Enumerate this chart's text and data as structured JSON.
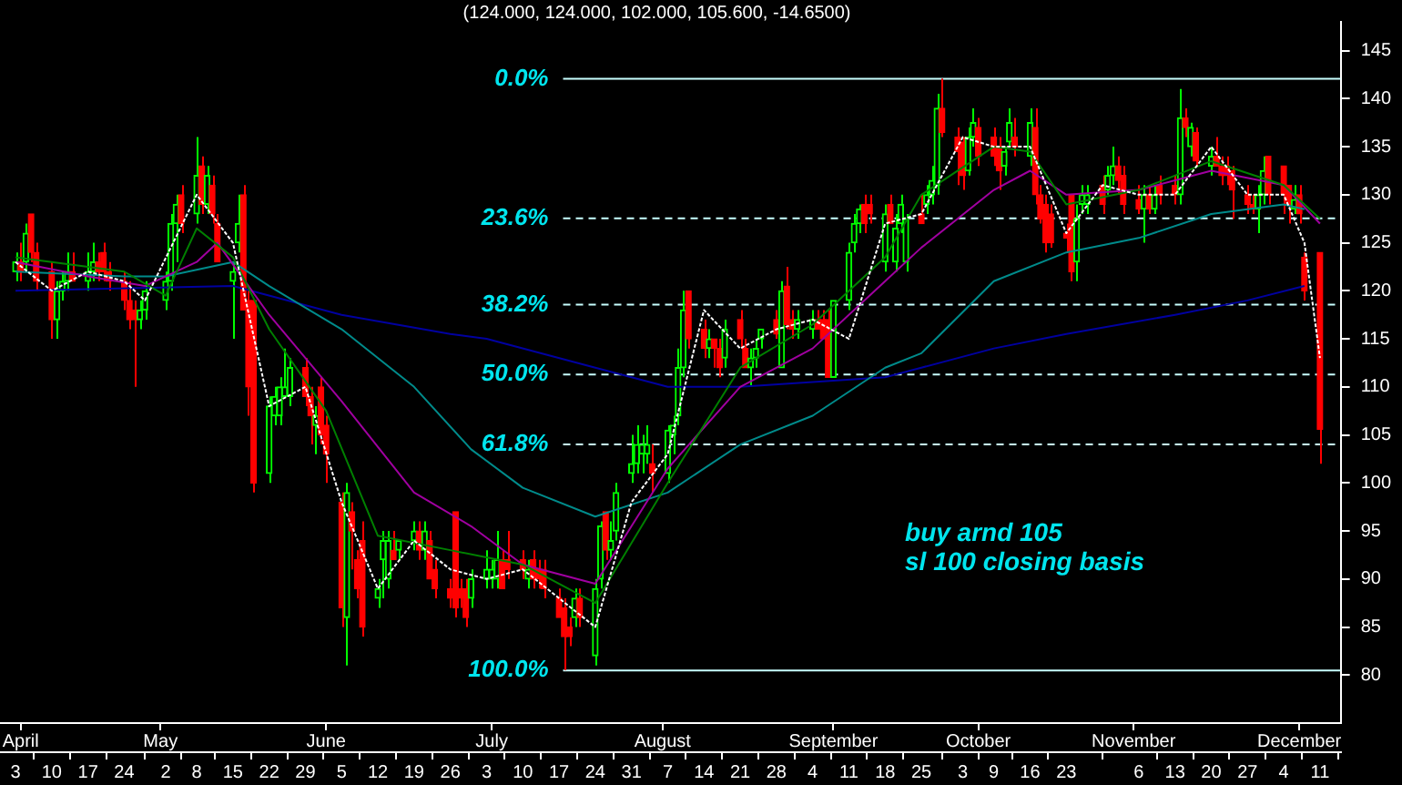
{
  "chart_data": {
    "type": "candlestick",
    "title": "(124.000, 124.000, 102.000, 105.600, -14.6500)",
    "x": [
      "--04-03",
      "--04-04",
      "--04-05",
      "--04-06",
      "--04-07",
      "--04-10",
      "--04-11",
      "--04-12",
      "--04-13",
      "--04-14",
      "--04-17",
      "--04-18",
      "--04-19",
      "--04-20",
      "--04-21",
      "--04-24",
      "--04-25",
      "--04-26",
      "--04-27",
      "--04-28",
      "--05-02",
      "--05-03",
      "--05-04",
      "--05-05",
      "--05-08",
      "--05-09",
      "--05-10",
      "--05-11",
      "--05-12",
      "--05-15",
      "--05-16",
      "--05-17",
      "--05-18",
      "--05-19",
      "--05-22",
      "--05-23",
      "--05-24",
      "--05-25",
      "--05-26",
      "--05-29",
      "--05-30",
      "--05-31",
      "--06-01",
      "--06-02",
      "--06-05",
      "--06-06",
      "--06-07",
      "--06-08",
      "--06-09",
      "--06-12",
      "--06-13",
      "--06-14",
      "--06-15",
      "--06-16",
      "--06-19",
      "--06-20",
      "--06-21",
      "--06-22",
      "--06-23",
      "--06-26",
      "--06-27",
      "--06-28",
      "--06-29",
      "--06-30",
      "--07-03",
      "--07-04",
      "--07-05",
      "--07-06",
      "--07-07",
      "--07-10",
      "--07-11",
      "--07-12",
      "--07-13",
      "--07-14",
      "--07-17",
      "--07-18",
      "--07-19",
      "--07-20",
      "--07-21",
      "--07-24",
      "--07-25",
      "--07-26",
      "--07-27",
      "--07-28",
      "--07-31",
      "--08-01",
      "--08-02",
      "--08-03",
      "--08-04",
      "--08-07",
      "--08-08",
      "--08-09",
      "--08-10",
      "--08-11",
      "--08-14",
      "--08-15",
      "--08-16",
      "--08-17",
      "--08-18",
      "--08-21",
      "--08-22",
      "--08-23",
      "--08-24",
      "--08-25",
      "--08-28",
      "--08-29",
      "--08-30",
      "--08-31",
      "--09-01",
      "--09-04",
      "--09-05",
      "--09-06",
      "--09-07",
      "--09-08",
      "--09-11",
      "--09-12",
      "--09-13",
      "--09-14",
      "--09-15",
      "--09-18",
      "--09-19",
      "--09-20",
      "--09-21",
      "--09-22",
      "--09-25",
      "--09-26",
      "--09-27",
      "--09-28",
      "--09-29",
      "--10-02",
      "--10-03",
      "--10-04",
      "--10-05",
      "--10-06",
      "--10-09",
      "--10-10",
      "--10-11",
      "--10-12",
      "--10-13",
      "--10-16",
      "--10-17",
      "--10-18",
      "--10-19",
      "--10-20",
      "--10-23",
      "--10-24",
      "--10-25",
      "--10-26",
      "--10-27",
      "--10-30",
      "--10-31",
      "--11-01",
      "--11-02",
      "--11-03",
      "--11-06",
      "--11-07",
      "--11-08",
      "--11-09",
      "--11-10",
      "--11-13",
      "--11-14",
      "--11-15",
      "--11-16",
      "--11-17",
      "--11-20",
      "--11-21",
      "--11-22",
      "--11-23",
      "--11-24",
      "--11-27",
      "--11-28",
      "--11-29",
      "--11-30",
      "--12-01",
      "--12-04",
      "--12-05",
      "--12-06",
      "--12-07",
      "--12-08",
      "--12-11"
    ],
    "ohlc": [
      [
        122,
        124,
        121,
        123
      ],
      [
        123,
        125,
        121,
        122
      ],
      [
        123,
        127,
        122,
        126
      ],
      [
        128,
        128,
        123,
        124
      ],
      [
        124,
        125,
        120,
        121
      ],
      [
        122,
        123,
        115,
        117
      ],
      [
        117,
        121,
        115,
        120
      ],
      [
        120,
        122,
        119,
        121
      ],
      [
        121,
        124,
        120,
        122
      ],
      [
        122,
        124,
        121,
        121
      ],
      [
        121,
        124,
        120,
        122
      ],
      [
        122,
        125,
        121,
        123
      ],
      [
        123,
        124,
        121,
        122
      ],
      [
        124,
        125,
        121,
        122
      ],
      [
        122,
        123,
        120,
        121
      ],
      [
        121,
        122,
        118,
        119
      ],
      [
        119,
        121,
        116,
        117
      ],
      [
        118,
        119,
        110,
        117
      ],
      [
        117,
        119,
        116,
        118
      ],
      [
        118,
        121,
        117,
        120
      ],
      [
        119,
        122,
        118,
        121
      ],
      [
        121,
        128,
        120,
        127
      ],
      [
        127,
        130,
        123,
        129
      ],
      [
        130,
        131,
        126,
        127
      ],
      [
        128,
        136,
        127,
        132
      ],
      [
        133,
        134,
        128,
        129
      ],
      [
        129,
        133,
        128,
        132
      ],
      [
        131,
        132,
        127,
        128
      ],
      [
        127,
        128,
        123,
        123
      ],
      [
        121,
        123,
        115,
        122
      ],
      [
        125,
        130,
        124,
        127
      ],
      [
        130,
        131,
        118,
        118
      ],
      [
        119,
        120,
        107,
        110
      ],
      [
        119,
        119,
        99,
        100
      ],
      [
        101,
        109,
        100,
        108
      ],
      [
        107,
        110,
        106,
        109
      ],
      [
        107,
        111,
        106,
        110
      ],
      [
        109,
        114,
        109,
        110
      ],
      [
        109,
        113,
        108,
        112
      ],
      [
        112,
        113,
        108,
        109
      ],
      [
        109,
        110,
        104,
        107
      ],
      [
        106,
        108,
        103,
        107
      ],
      [
        110,
        111,
        104,
        105
      ],
      [
        106,
        107,
        100,
        103
      ],
      [
        98,
        99,
        85,
        87
      ],
      [
        86,
        100,
        81,
        99
      ],
      [
        97,
        98,
        91,
        95
      ],
      [
        92,
        93,
        88,
        89
      ],
      [
        94,
        96,
        84,
        85
      ],
      [
        88,
        90,
        87,
        89
      ],
      [
        92,
        95,
        88,
        94
      ],
      [
        90,
        95,
        89,
        94
      ],
      [
        93,
        95,
        92,
        92
      ],
      [
        93,
        94,
        92,
        94
      ],
      [
        94,
        96,
        93,
        95
      ],
      [
        95,
        96,
        92,
        93
      ],
      [
        93,
        96,
        92,
        95
      ],
      [
        94,
        95,
        90,
        90
      ],
      [
        91,
        92,
        88,
        89
      ],
      [
        89,
        90,
        87,
        88
      ],
      [
        97,
        97,
        86,
        87
      ],
      [
        89,
        90,
        87,
        88
      ],
      [
        89,
        90,
        85,
        86
      ],
      [
        88,
        91,
        87,
        90
      ],
      [
        90,
        93,
        89,
        91
      ],
      [
        90,
        92,
        89,
        91
      ],
      [
        90,
        95,
        89,
        92
      ],
      [
        92,
        93,
        89,
        89
      ],
      [
        92,
        95,
        90,
        91
      ],
      [
        92,
        93,
        90,
        91
      ],
      [
        90,
        92,
        89,
        91
      ],
      [
        92,
        93,
        89,
        90
      ],
      [
        91,
        92,
        89,
        90
      ],
      [
        91,
        92,
        88,
        89
      ],
      [
        88,
        89,
        86,
        86
      ],
      [
        87,
        88,
        80.5,
        84
      ],
      [
        85,
        86,
        83,
        84
      ],
      [
        86,
        89,
        85,
        88
      ],
      [
        88,
        89,
        85,
        86
      ],
      [
        82,
        90,
        81,
        89
      ],
      [
        90,
        96,
        89,
        95.5
      ],
      [
        97,
        97,
        92,
        93
      ],
      [
        93,
        96,
        92,
        94
      ],
      [
        95,
        100,
        94,
        99
      ],
      [
        101,
        105,
        100,
        102
      ],
      [
        102,
        106,
        101,
        104
      ],
      [
        103,
        105,
        101,
        104
      ],
      [
        103,
        106,
        102,
        104
      ],
      [
        102,
        104,
        99,
        101
      ],
      [
        101,
        106,
        100,
        105.5
      ],
      [
        105,
        107,
        103,
        106
      ],
      [
        107,
        114,
        106,
        112
      ],
      [
        112,
        120,
        111,
        118
      ],
      [
        120,
        120,
        114,
        115
      ],
      [
        116,
        117,
        113,
        114
      ],
      [
        114,
        116,
        113,
        115
      ],
      [
        115,
        115,
        112,
        114
      ],
      [
        114,
        115,
        111,
        112
      ],
      [
        113,
        117,
        112,
        116
      ],
      [
        117,
        118,
        114,
        115
      ],
      [
        114,
        115,
        112,
        112
      ],
      [
        112,
        114,
        110,
        113
      ],
      [
        113,
        115,
        112,
        114
      ],
      [
        115,
        116,
        114,
        116
      ],
      [
        117,
        118,
        115,
        115.5
      ],
      [
        112,
        121,
        112,
        120
      ],
      [
        120.5,
        122.5,
        116,
        116.5
      ],
      [
        117,
        118,
        115,
        116
      ],
      [
        116,
        118,
        115,
        117
      ],
      [
        116,
        118,
        115,
        117
      ],
      [
        117,
        118,
        116,
        116
      ],
      [
        117,
        118,
        115,
        115
      ],
      [
        117,
        118,
        111,
        111
      ],
      [
        111,
        119,
        111,
        119
      ],
      [
        119,
        125,
        118,
        124
      ],
      [
        125,
        128,
        124,
        127
      ],
      [
        127,
        129,
        126,
        128.5
      ],
      [
        129,
        130,
        126,
        127
      ],
      [
        129,
        130,
        127,
        128
      ],
      [
        123,
        129,
        122,
        128
      ],
      [
        129,
        130,
        127,
        127
      ],
      [
        123,
        128,
        122,
        126.5
      ],
      [
        127,
        130,
        126,
        129
      ],
      [
        123,
        128,
        122,
        127.5
      ],
      [
        128,
        130,
        127,
        127
      ],
      [
        129,
        131,
        128,
        130
      ],
      [
        130,
        133,
        129,
        131.5
      ],
      [
        131,
        140.5,
        130,
        139
      ],
      [
        139,
        142.1,
        136,
        136.5
      ],
      [
        136,
        137,
        131,
        134.5
      ],
      [
        135.5,
        136,
        130.5,
        132
      ],
      [
        132.5,
        137,
        132,
        136
      ],
      [
        136,
        139,
        135,
        137.5
      ],
      [
        137,
        138,
        133,
        134
      ],
      [
        136,
        137,
        133,
        134
      ],
      [
        135,
        136,
        130.5,
        132.5
      ],
      [
        133,
        135,
        132,
        134.5
      ],
      [
        135.5,
        139,
        135,
        137.5
      ],
      [
        136,
        138,
        134,
        135
      ],
      [
        134,
        139,
        133,
        137.5
      ],
      [
        137,
        139,
        129,
        130
      ],
      [
        130,
        131,
        127,
        127.5
      ],
      [
        129,
        130,
        124,
        125
      ],
      [
        128,
        129,
        124.5,
        125
      ],
      [
        126,
        127,
        124,
        125.5
      ],
      [
        130,
        130,
        121,
        122
      ],
      [
        123,
        129,
        121,
        127.5
      ],
      [
        129,
        131,
        128,
        130
      ],
      [
        129,
        131,
        128,
        130
      ],
      [
        131,
        132,
        128,
        129
      ],
      [
        130.5,
        133,
        130,
        132
      ],
      [
        132,
        135,
        131,
        133
      ],
      [
        133,
        134,
        130,
        131.5
      ],
      [
        132,
        133,
        128,
        129
      ],
      [
        129.5,
        131,
        128,
        128.5
      ],
      [
        128.5,
        131,
        125,
        130
      ],
      [
        130,
        131,
        128,
        128.5
      ],
      [
        128.5,
        131,
        128,
        130
      ],
      [
        131,
        132,
        129,
        130
      ],
      [
        131,
        132,
        129,
        130
      ],
      [
        130,
        141,
        129,
        138
      ],
      [
        138,
        139,
        136,
        137
      ],
      [
        135,
        137.5,
        134,
        137
      ],
      [
        136.5,
        137,
        133,
        133.5
      ],
      [
        133,
        135,
        132,
        134
      ],
      [
        134,
        136,
        133,
        133
      ],
      [
        133,
        134,
        131,
        132
      ],
      [
        133,
        134,
        131,
        132
      ],
      [
        132.5,
        133,
        127.5,
        130.5
      ],
      [
        130,
        131,
        128,
        129
      ],
      [
        129,
        130,
        128,
        128.5
      ],
      [
        128.5,
        131,
        126,
        130
      ],
      [
        130,
        134,
        129,
        132.5
      ],
      [
        134,
        134,
        129,
        130
      ],
      [
        133,
        133,
        128,
        130
      ],
      [
        131,
        131,
        127,
        129
      ],
      [
        128.5,
        131,
        128,
        129.5
      ],
      [
        130,
        131,
        127,
        128
      ],
      [
        123.5,
        124,
        119,
        120
      ],
      [
        124,
        124,
        102,
        105.6
      ]
    ],
    "colors": [
      "#00ff00",
      "#ff0000",
      "#00ff00",
      "#ff0000",
      "#ff0000",
      "#ff0000",
      "#00ff00",
      "#00ff00",
      "#00ff00",
      "#ff0000",
      "#00ff00",
      "#00ff00",
      "#ff0000",
      "#ff0000",
      "#ff0000",
      "#ff0000",
      "#ff0000",
      "#ff0000",
      "#00ff00",
      "#00ff00",
      "#00ff00",
      "#00ff00",
      "#00ff00",
      "#ff0000",
      "#00ff00",
      "#ff0000",
      "#00ff00",
      "#ff0000",
      "#ff0000",
      "#00ff00",
      "#00ff00",
      "#ff0000",
      "#ff0000",
      "#ff0000",
      "#00ff00",
      "#00ff00",
      "#00ff00",
      "#00ff00",
      "#00ff00",
      "#ff0000",
      "#ff0000",
      "#00ff00",
      "#ff0000",
      "#ff0000",
      "#ff0000",
      "#00ff00",
      "#ff0000",
      "#ff0000",
      "#ff0000",
      "#00ff00",
      "#00ff00",
      "#00ff00",
      "#ff0000",
      "#00ff00",
      "#00ff00",
      "#ff0000",
      "#00ff00",
      "#ff0000",
      "#ff0000",
      "#ff0000",
      "#ff0000",
      "#ff0000",
      "#ff0000",
      "#00ff00",
      "#00ff00",
      "#00ff00",
      "#00ff00",
      "#ff0000",
      "#ff0000",
      "#ff0000",
      "#00ff00",
      "#ff0000",
      "#ff0000",
      "#ff0000",
      "#ff0000",
      "#ff0000",
      "#ff0000",
      "#00ff00",
      "#ff0000",
      "#00ff00",
      "#00ff00",
      "#ff0000",
      "#00ff00",
      "#00ff00",
      "#00ff00",
      "#00ff00",
      "#00ff00",
      "#00ff00",
      "#ff0000",
      "#00ff00",
      "#00ff00",
      "#00ff00",
      "#00ff00",
      "#ff0000",
      "#ff0000",
      "#00ff00",
      "#ff0000",
      "#ff0000",
      "#00ff00",
      "#ff0000",
      "#ff0000",
      "#00ff00",
      "#00ff00",
      "#00ff00",
      "#ff0000",
      "#00ff00",
      "#ff0000",
      "#ff0000",
      "#00ff00",
      "#00ff00",
      "#ff0000",
      "#ff0000",
      "#ff0000",
      "#00ff00",
      "#00ff00",
      "#00ff00",
      "#00ff00",
      "#ff0000",
      "#ff0000",
      "#00ff00",
      "#ff0000",
      "#00ff00",
      "#00ff00",
      "#00ff00",
      "#ff0000",
      "#00ff00",
      "#00ff00",
      "#00ff00",
      "#ff0000",
      "#ff0000",
      "#ff0000",
      "#00ff00",
      "#00ff00",
      "#ff0000",
      "#ff0000",
      "#ff0000",
      "#00ff00",
      "#00ff00",
      "#ff0000",
      "#00ff00",
      "#ff0000",
      "#ff0000",
      "#ff0000",
      "#ff0000",
      "#ff0000",
      "#ff0000",
      "#00ff00",
      "#00ff00",
      "#00ff00",
      "#ff0000",
      "#00ff00",
      "#00ff00",
      "#ff0000",
      "#ff0000",
      "#ff0000",
      "#00ff00",
      "#ff0000",
      "#00ff00",
      "#ff0000",
      "#ff0000",
      "#00ff00",
      "#ff0000",
      "#00ff00",
      "#ff0000",
      "#00ff00",
      "#ff0000",
      "#ff0000",
      "#ff0000",
      "#ff0000",
      "#ff0000",
      "#ff0000",
      "#00ff00",
      "#00ff00",
      "#ff0000",
      "#ff0000",
      "#ff0000",
      "#00ff00",
      "#ff0000",
      "#ff0000",
      "#ff0000"
    ],
    "series": [
      {
        "type": "line",
        "color": "#ffffff",
        "line_style": "dotted",
        "x": [
          "--04-03",
          "--04-10",
          "--04-17",
          "--04-24",
          "--04-28",
          "--05-08",
          "--05-15",
          "--05-22",
          "--05-29",
          "--06-05",
          "--06-12",
          "--06-19",
          "--06-26",
          "--07-03",
          "--07-10",
          "--07-17",
          "--07-24",
          "--07-31",
          "--08-07",
          "--08-14",
          "--08-21",
          "--08-28",
          "--09-04",
          "--09-11",
          "--09-18",
          "--09-25",
          "--10-03",
          "--10-09",
          "--10-16",
          "--10-23",
          "--10-30",
          "--11-06",
          "--11-13",
          "--11-20",
          "--11-27",
          "--12-04",
          "--12-08",
          "--12-11"
        ],
        "values": [
          123,
          120,
          122,
          121,
          119,
          130,
          125,
          108,
          110,
          98,
          89,
          94,
          91,
          90,
          91,
          88,
          85,
          98,
          103,
          118,
          114,
          116,
          117,
          115,
          127,
          128,
          136,
          135,
          135,
          126,
          131,
          130,
          130,
          135,
          130,
          130,
          125,
          113
        ]
      },
      {
        "type": "line",
        "color": "#008000",
        "line_style": "solid",
        "x": [
          "--04-03",
          "--04-24",
          "--05-02",
          "--05-08",
          "--05-15",
          "--05-22",
          "--06-02",
          "--06-12",
          "--06-26",
          "--07-10",
          "--07-24",
          "--08-07",
          "--08-21",
          "--09-04",
          "--09-18",
          "--09-25",
          "--10-09",
          "--10-16",
          "--10-23",
          "--11-06",
          "--11-20",
          "--12-04",
          "--12-11"
        ],
        "values": [
          123.5,
          122,
          119.5,
          126.5,
          123.5,
          116,
          107.5,
          94.5,
          93,
          91.5,
          87.5,
          100,
          112,
          116.5,
          123.5,
          130,
          135,
          134.5,
          129,
          130.5,
          133.5,
          131,
          127.5
        ]
      },
      {
        "type": "line",
        "color": "#a000a0",
        "line_style": "solid",
        "x": [
          "--04-03",
          "--04-17",
          "--04-28",
          "--05-08",
          "--05-12",
          "--05-22",
          "--06-05",
          "--06-19",
          "--06-30",
          "--07-10",
          "--07-24",
          "--08-07",
          "--08-21",
          "--09-04",
          "--09-18",
          "--09-25",
          "--10-09",
          "--10-16",
          "--10-23",
          "--11-06",
          "--11-20",
          "--12-04",
          "--12-11"
        ],
        "values": [
          123,
          121.5,
          120.5,
          123,
          125,
          117.5,
          108.5,
          99,
          95.5,
          91.5,
          89.5,
          101.5,
          110,
          114,
          121,
          124.5,
          130.5,
          132.5,
          130,
          130.5,
          132.5,
          131,
          127
        ]
      },
      {
        "type": "line",
        "color": "#008b8b",
        "line_style": "solid",
        "x": [
          "--04-03",
          "--04-24",
          "--05-02",
          "--05-15",
          "--05-22",
          "--06-05",
          "--06-19",
          "--06-30",
          "--07-10",
          "--07-24",
          "--08-07",
          "--08-21",
          "--09-04",
          "--09-18",
          "--09-25",
          "--10-09",
          "--10-23",
          "--11-06",
          "--11-20",
          "--12-04",
          "--12-08"
        ],
        "values": [
          122,
          121.5,
          121.5,
          123,
          120.5,
          116,
          110,
          103.5,
          99.5,
          96.5,
          99,
          104,
          107,
          112,
          113.5,
          121,
          124,
          125.5,
          128,
          129,
          128.5
        ]
      },
      {
        "type": "line",
        "color": "#0000a0",
        "line_style": "solid",
        "x": [
          "--04-03",
          "--05-15",
          "--06-05",
          "--06-26",
          "--07-03",
          "--07-24",
          "--08-07",
          "--08-21",
          "--09-04",
          "--09-18",
          "--09-25",
          "--10-09",
          "--10-23",
          "--11-13",
          "--11-27",
          "--12-08"
        ],
        "values": [
          120,
          120.5,
          117.5,
          115.5,
          115,
          112,
          110,
          110,
          110.5,
          111,
          112,
          114,
          115.5,
          117.5,
          119,
          120.5
        ]
      }
    ],
    "xlim": [
      "--03-31",
      "--12-15"
    ],
    "xticks": [
      {
        "value": "--04-03",
        "label": "3"
      },
      {
        "value": "--04-10",
        "label": "10"
      },
      {
        "value": "--04-17",
        "label": "17"
      },
      {
        "value": "--04-24",
        "label": "24"
      },
      {
        "value": "--05-02",
        "label": "2"
      },
      {
        "value": "--05-08",
        "label": "8"
      },
      {
        "value": "--05-15",
        "label": "15"
      },
      {
        "value": "--05-22",
        "label": "22"
      },
      {
        "value": "--05-29",
        "label": "29"
      },
      {
        "value": "--06-05",
        "label": "5"
      },
      {
        "value": "--06-12",
        "label": "12"
      },
      {
        "value": "--06-19",
        "label": "19"
      },
      {
        "value": "--06-26",
        "label": "26"
      },
      {
        "value": "--07-03",
        "label": "3"
      },
      {
        "value": "--07-10",
        "label": "10"
      },
      {
        "value": "--07-17",
        "label": "17"
      },
      {
        "value": "--07-24",
        "label": "24"
      },
      {
        "value": "--07-31",
        "label": "31"
      },
      {
        "value": "--08-07",
        "label": "7"
      },
      {
        "value": "--08-14",
        "label": "14"
      },
      {
        "value": "--08-21",
        "label": "21"
      },
      {
        "value": "--08-28",
        "label": "28"
      },
      {
        "value": "--09-04",
        "label": "4"
      },
      {
        "value": "--09-11",
        "label": "11"
      },
      {
        "value": "--09-18",
        "label": "18"
      },
      {
        "value": "--09-25",
        "label": "25"
      },
      {
        "value": "--10-03",
        "label": "3"
      },
      {
        "value": "--10-09",
        "label": "9"
      },
      {
        "value": "--10-16",
        "label": "16"
      },
      {
        "value": "--10-23",
        "label": "23"
      },
      {
        "value": "--11-06",
        "label": "6"
      },
      {
        "value": "--11-13",
        "label": "13"
      },
      {
        "value": "--11-20",
        "label": "20"
      },
      {
        "value": "--11-27",
        "label": "27"
      },
      {
        "value": "--12-04",
        "label": "4"
      },
      {
        "value": "--12-11",
        "label": "11"
      }
    ],
    "x2lim": [
      "--03-31",
      "--12-15"
    ],
    "x2ticks": [
      {
        "value": "--04-04",
        "label": "April"
      },
      {
        "value": "--05-01",
        "label": "May"
      },
      {
        "value": "--06-02",
        "label": "June"
      },
      {
        "value": "--07-04",
        "label": "July"
      },
      {
        "value": "--08-06",
        "label": "August"
      },
      {
        "value": "--09-08",
        "label": "September"
      },
      {
        "value": "--10-06",
        "label": "October"
      },
      {
        "value": "--11-05",
        "label": "November"
      },
      {
        "value": "--12-07",
        "label": "December"
      }
    ],
    "y2lim": [
      108.9,
      -9.6
    ],
    "ylim": [
      75,
      148
    ],
    "yticks": [
      80,
      85,
      90,
      95,
      100,
      105,
      110,
      115,
      120,
      125,
      130,
      135,
      140,
      145
    ],
    "ref_lines": [
      {
        "axis": "y2",
        "value": 0,
        "label": "0.0%",
        "color": "#c8ffff",
        "line_style": "solid"
      },
      {
        "axis": "y2",
        "value": 23.6,
        "label": "23.6%",
        "color": "#c8ffff",
        "line_style": "dashed"
      },
      {
        "axis": "y2",
        "value": 38.2,
        "label": "38.2%",
        "color": "#c8ffff",
        "line_style": "dashed"
      },
      {
        "axis": "y2",
        "value": 50,
        "label": "50.0%",
        "color": "#c8ffff",
        "line_style": "dashed"
      },
      {
        "axis": "y2",
        "value": 61.8,
        "label": "61.8%",
        "color": "#c8ffff",
        "line_style": "dashed"
      },
      {
        "axis": "y2",
        "value": 100,
        "label": "100.0%",
        "color": "#c8ffff",
        "line_style": "solid"
      }
    ],
    "annotations": [
      "buy arnd 105",
      "sl 100 closing basis"
    ]
  }
}
